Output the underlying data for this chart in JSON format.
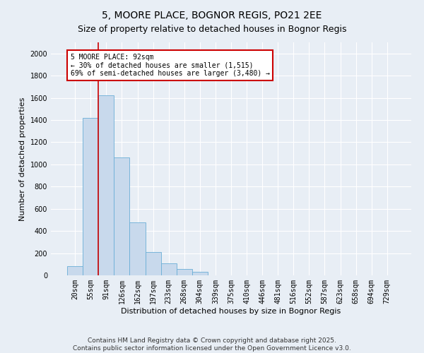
{
  "title": "5, MOORE PLACE, BOGNOR REGIS, PO21 2EE",
  "subtitle": "Size of property relative to detached houses in Bognor Regis",
  "xlabel": "Distribution of detached houses by size in Bognor Regis",
  "ylabel": "Number of detached properties",
  "footer_line1": "Contains HM Land Registry data © Crown copyright and database right 2025.",
  "footer_line2": "Contains public sector information licensed under the Open Government Licence v3.0.",
  "bar_labels": [
    "20sqm",
    "55sqm",
    "91sqm",
    "126sqm",
    "162sqm",
    "197sqm",
    "233sqm",
    "268sqm",
    "304sqm",
    "339sqm",
    "375sqm",
    "410sqm",
    "446sqm",
    "481sqm",
    "516sqm",
    "552sqm",
    "587sqm",
    "623sqm",
    "658sqm",
    "694sqm",
    "729sqm"
  ],
  "bar_values": [
    80,
    1420,
    1620,
    1060,
    480,
    210,
    110,
    55,
    35,
    0,
    0,
    0,
    0,
    0,
    0,
    0,
    0,
    0,
    0,
    0,
    0
  ],
  "bar_color": "#c8d9ec",
  "bar_edge_color": "#6aaed6",
  "ylim": [
    0,
    2100
  ],
  "yticks": [
    0,
    200,
    400,
    600,
    800,
    1000,
    1200,
    1400,
    1600,
    1800,
    2000
  ],
  "property_line_index": 2,
  "property_line_color": "#cc0000",
  "annotation_text": "5 MOORE PLACE: 92sqm\n← 30% of detached houses are smaller (1,515)\n69% of semi-detached houses are larger (3,480) →",
  "annotation_box_color": "#cc0000",
  "bg_color": "#e8eef5",
  "plot_bg_color": "#e8eef5",
  "grid_color": "#ffffff",
  "title_fontsize": 10,
  "subtitle_fontsize": 9,
  "tick_fontsize": 7,
  "label_fontsize": 8,
  "annotation_fontsize": 7,
  "footer_fontsize": 6.5
}
